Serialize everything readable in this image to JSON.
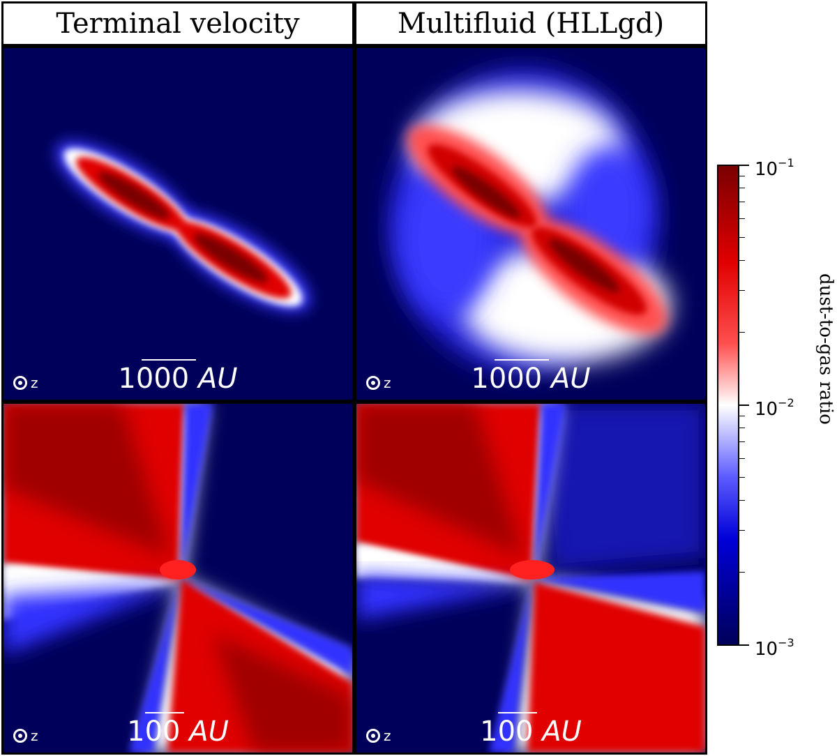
{
  "headers": {
    "left": "Terminal velocity",
    "right": "Multifluid (HLLgd)"
  },
  "panels": {
    "top_left": {
      "scale_value": "1000",
      "scale_unit": "AU",
      "axis": "z"
    },
    "top_right": {
      "scale_value": "1000",
      "scale_unit": "AU",
      "axis": "z"
    },
    "bottom_left": {
      "scale_value": "100",
      "scale_unit": "AU",
      "axis": "z"
    },
    "bottom_right": {
      "scale_value": "100",
      "scale_unit": "AU",
      "axis": "z"
    }
  },
  "colorbar": {
    "title": "dust-to-gas ratio",
    "ticks": [
      {
        "base": "10",
        "exp": "−1",
        "value": 0.1
      },
      {
        "base": "10",
        "exp": "−2",
        "value": 0.01
      },
      {
        "base": "10",
        "exp": "−3",
        "value": 0.001
      }
    ],
    "colors": {
      "low": "#00005a",
      "mid": "#ffffff",
      "high": "#7a0000"
    }
  }
}
